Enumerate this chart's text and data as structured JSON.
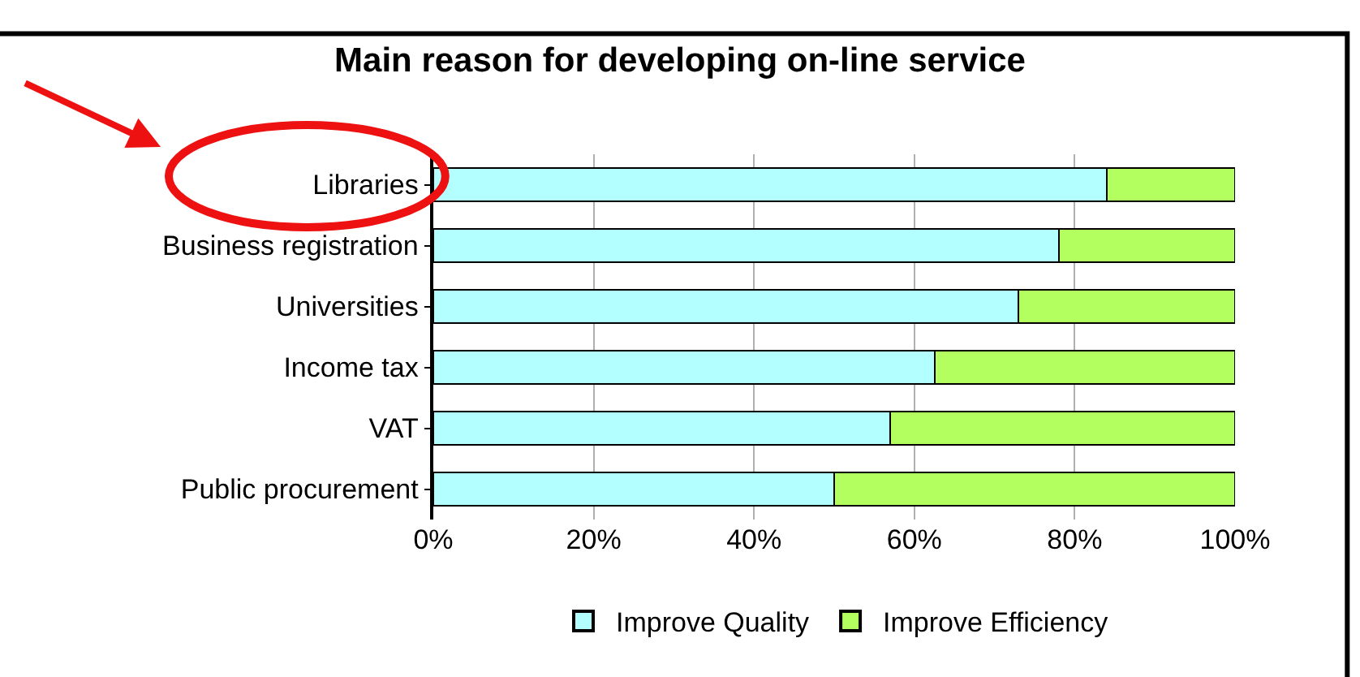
{
  "chart_data": {
    "type": "bar",
    "orientation": "horizontal",
    "stacked": true,
    "title": "Main reason for developing on-line service",
    "categories": [
      "Libraries",
      "Business registration",
      "Universities",
      "Income tax",
      "VAT",
      "Public procurement"
    ],
    "series": [
      {
        "name": "Improve Quality",
        "color": "#b3ffff",
        "values": [
          84,
          78,
          73,
          62.5,
          57,
          50
        ]
      },
      {
        "name": "Improve Efficiency",
        "color": "#b3ff5f",
        "values": [
          16,
          22,
          27,
          37.5,
          43,
          50
        ]
      }
    ],
    "xlim": [
      0,
      100
    ],
    "xticks": [
      {
        "value": 0,
        "label": "0%"
      },
      {
        "value": 20,
        "label": "20%"
      },
      {
        "value": 40,
        "label": "40%"
      },
      {
        "value": 60,
        "label": "60%"
      },
      {
        "value": 80,
        "label": "80%"
      },
      {
        "value": 100,
        "label": "100%"
      }
    ],
    "grid": "x",
    "legend": "bottom"
  }
}
